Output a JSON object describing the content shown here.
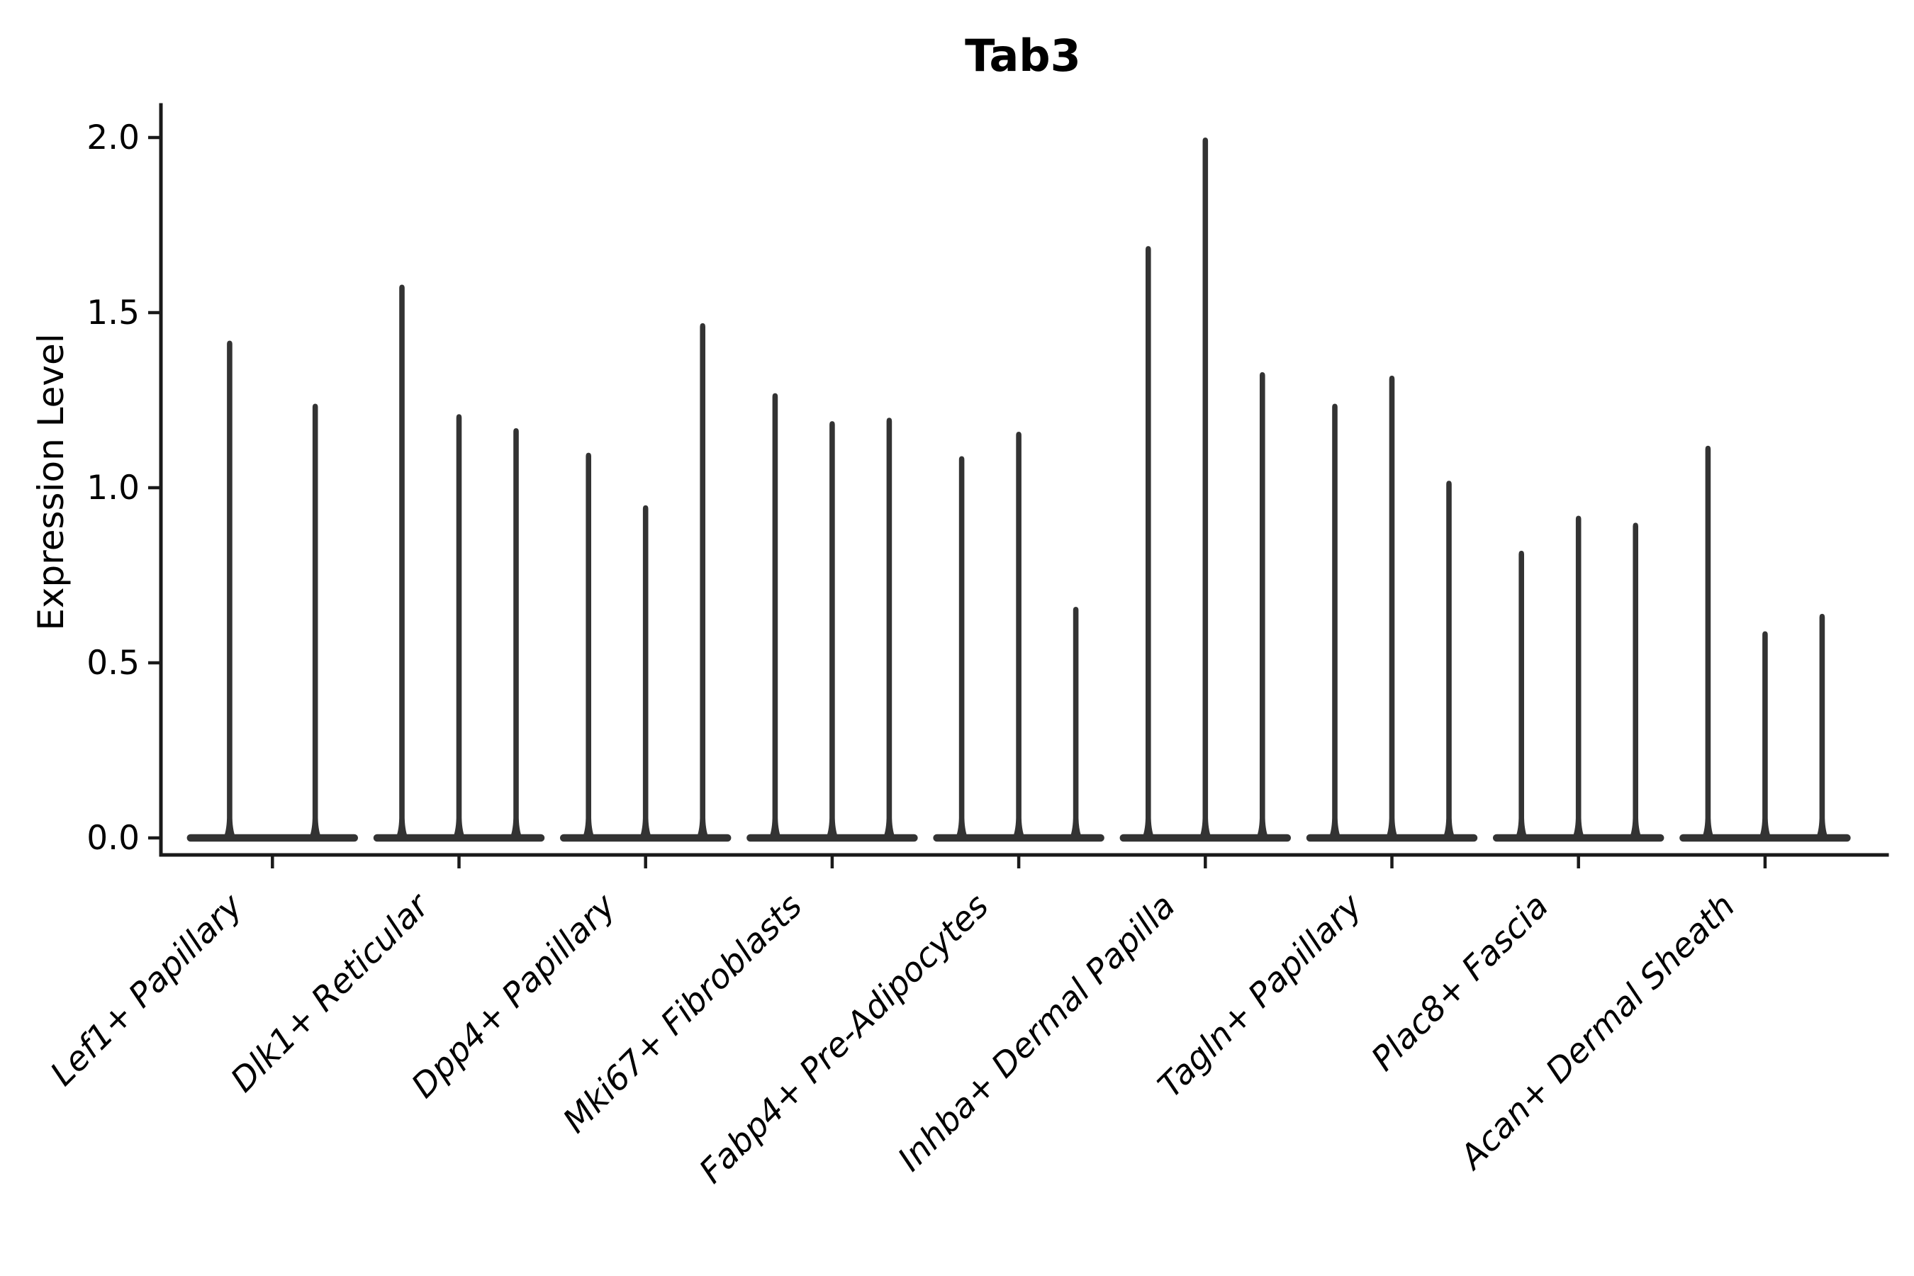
{
  "figure": {
    "background_color": "#ffffff",
    "text_color": "#000000"
  },
  "chart_data": {
    "type": "violin",
    "title": "Tab3",
    "xlabel": "",
    "ylabel": "Expression Level",
    "ylim": [
      0,
      2.05
    ],
    "yticks": [
      0.0,
      0.5,
      1.0,
      1.5,
      2.0
    ],
    "ytick_labels": [
      "0.0",
      "0.5",
      "1.0",
      "1.5",
      "2.0"
    ],
    "xtick_rotation_deg": 45,
    "xtick_style": "italic",
    "grid": false,
    "legend": null,
    "violin_color": "#333333",
    "axis_color": "#1a1a1a",
    "violin_shape_note": "each violin is collapsed at expression 0 (flat horizontal body) with a thin spike rising to its maximum value",
    "categories": [
      "Lef1+ Papillary",
      "Dlk1+ Reticular",
      "Dpp4+ Papillary",
      "Mki67+ Fibroblasts",
      "Fabp4+ Pre-Adipocytes",
      "Inhba+ Dermal Papilla",
      "Tagln+ Papillary",
      "Plac8+ Fascia",
      "Acan+ Dermal Sheath"
    ],
    "series": [
      {
        "category": "Lef1+ Papillary",
        "violin_max_values": [
          1.42,
          1.24
        ]
      },
      {
        "category": "Dlk1+ Reticular",
        "violin_max_values": [
          1.58,
          1.21,
          1.17
        ]
      },
      {
        "category": "Dpp4+ Papillary",
        "violin_max_values": [
          1.1,
          0.95,
          1.47
        ]
      },
      {
        "category": "Mki67+ Fibroblasts",
        "violin_max_values": [
          1.27,
          1.19,
          1.2
        ]
      },
      {
        "category": "Fabp4+ Pre-Adipocytes",
        "violin_max_values": [
          1.09,
          1.16,
          0.66
        ]
      },
      {
        "category": "Inhba+ Dermal Papilla",
        "violin_max_values": [
          1.69,
          2.0,
          1.33
        ]
      },
      {
        "category": "Tagln+ Papillary",
        "violin_max_values": [
          1.24,
          1.32,
          1.02
        ]
      },
      {
        "category": "Plac8+ Fascia",
        "violin_max_values": [
          0.82,
          0.92,
          0.9
        ]
      },
      {
        "category": "Acan+ Dermal Sheath",
        "violin_max_values": [
          1.12,
          0.59,
          0.64
        ]
      }
    ]
  }
}
